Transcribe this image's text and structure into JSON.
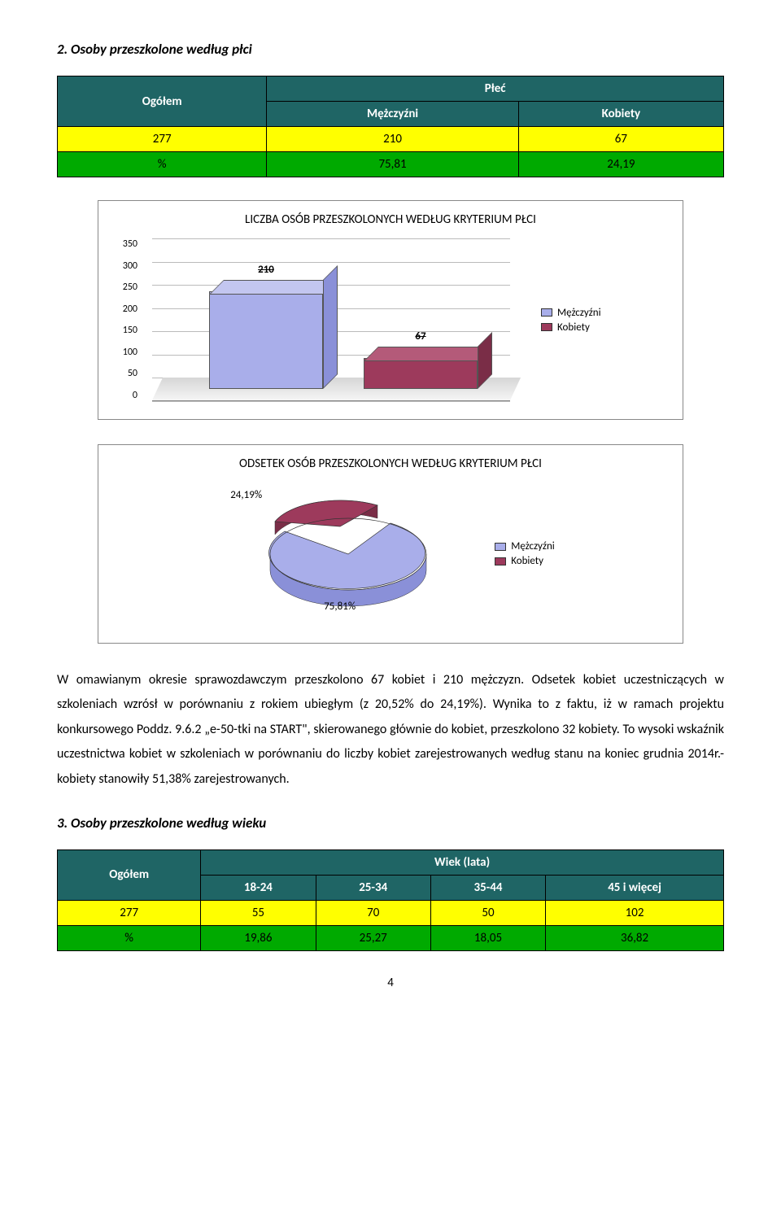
{
  "section2": {
    "title": "2. Osoby przeszkolone według płci",
    "table": {
      "col_ogolem": "Ogółem",
      "col_plec": "Płeć",
      "col_m": "Mężczyźni",
      "col_k": "Kobiety",
      "row1": {
        "og": "277",
        "m": "210",
        "k": "67"
      },
      "row2": {
        "og": "%",
        "m": "75,81",
        "k": "24,19"
      }
    }
  },
  "chart1": {
    "title": "LICZBA OSÓB PRZESZKOLONYCH WEDŁUG KRYTERIUM PŁCI",
    "ymax": 350,
    "ticks": [
      "350",
      "300",
      "250",
      "200",
      "150",
      "100",
      "50",
      "0"
    ],
    "bars": [
      {
        "label": "210",
        "value": 210,
        "color_front": "#a9aeea",
        "color_top": "#c3c6f0",
        "color_side": "#8a90d8"
      },
      {
        "label": "67",
        "value": 67,
        "color_front": "#9d3a5c",
        "color_top": "#b45a79",
        "color_side": "#7a2d47"
      }
    ],
    "legend": [
      {
        "label": "Mężczyźni",
        "color": "#a9aeea"
      },
      {
        "label": "Kobiety",
        "color": "#9d3a5c"
      }
    ]
  },
  "chart2": {
    "title": "ODSETEK OSÓB PRZESZKOLONYCH WEDŁUG KRYTERIUM PŁCI",
    "slices": [
      {
        "label": "75,81%",
        "value": 75.81,
        "color": "#a9aeea"
      },
      {
        "label": "24,19%",
        "value": 24.19,
        "color": "#9d3a5c"
      }
    ],
    "legend": [
      {
        "label": "Mężczyźni",
        "color": "#a9aeea"
      },
      {
        "label": "Kobiety",
        "color": "#9d3a5c"
      }
    ]
  },
  "paragraph": "W omawianym okresie sprawozdawczym przeszkolono 67 kobiet i 210 mężczyzn. Odsetek kobiet uczestniczących w szkoleniach wzrósł w porównaniu z rokiem ubiegłym (z 20,52% do 24,19%). Wynika to z faktu, iż w ramach projektu konkursowego Poddz. 9.6.2 „e-50-tki na START\", skierowanego głównie do kobiet, przeszkolono 32 kobiety. To wysoki wskaźnik uczestnictwa kobiet w szkoleniach w porównaniu do liczby kobiet zarejestrowanych według stanu na koniec grudnia 2014r.- kobiety stanowiły 51,38% zarejestrowanych.",
  "section3": {
    "title": "3. Osoby przeszkolone według wieku",
    "table": {
      "col_ogolem": "Ogółem",
      "col_wiek": "Wiek (lata)",
      "cols": [
        "18-24",
        "25-34",
        "35-44",
        "45 i więcej"
      ],
      "row1": {
        "og": "277",
        "c": [
          "55",
          "70",
          "50",
          "102"
        ]
      },
      "row2": {
        "og": "%",
        "c": [
          "19,86",
          "25,27",
          "18,05",
          "36,82"
        ]
      }
    }
  },
  "page_number": "4",
  "colors": {
    "header_bg": "#1f6565",
    "yellow": "#ffff00",
    "green": "#00aa00",
    "blue_bar": "#a9aeea",
    "maroon_bar": "#9d3a5c"
  }
}
